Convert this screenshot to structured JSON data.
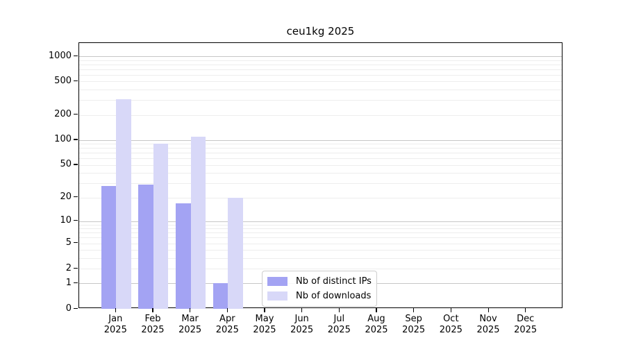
{
  "title": "ceu1kg 2025",
  "legend": {
    "items": [
      {
        "label": "Nb of distinct IPs",
        "color": "#a3a3f3"
      },
      {
        "label": "Nb of downloads",
        "color": "#d8d8f8"
      }
    ]
  },
  "chart_data": {
    "type": "bar",
    "title": "ceu1kg 2025",
    "xlabel": "",
    "ylabel": "",
    "year": "2025",
    "categories": [
      "Jan",
      "Feb",
      "Mar",
      "Apr",
      "May",
      "Jun",
      "Jul",
      "Aug",
      "Sep",
      "Oct",
      "Nov",
      "Dec"
    ],
    "series": [
      {
        "name": "Nb of distinct IPs",
        "color": "#a3a3f3",
        "values": [
          28,
          29,
          17,
          1,
          0,
          0,
          0,
          0,
          0,
          0,
          0,
          0
        ]
      },
      {
        "name": "Nb of downloads",
        "color": "#d8d8f8",
        "values": [
          310,
          90,
          110,
          20,
          0,
          0,
          0,
          0,
          0,
          0,
          0,
          0
        ]
      }
    ],
    "yscale": "log1p",
    "ylim": [
      0,
      1000
    ],
    "ytick_values": [
      0,
      1,
      2,
      5,
      10,
      20,
      50,
      100,
      200,
      500,
      1000
    ],
    "major_gridline_values": [
      1,
      10,
      100,
      1000
    ],
    "minor_gridline_values": [
      2,
      3,
      4,
      5,
      6,
      7,
      8,
      9,
      20,
      30,
      40,
      50,
      60,
      70,
      80,
      90,
      200,
      300,
      400,
      500,
      600,
      700,
      800,
      900
    ],
    "grid": "horizontal",
    "legend_position": "lower center"
  }
}
